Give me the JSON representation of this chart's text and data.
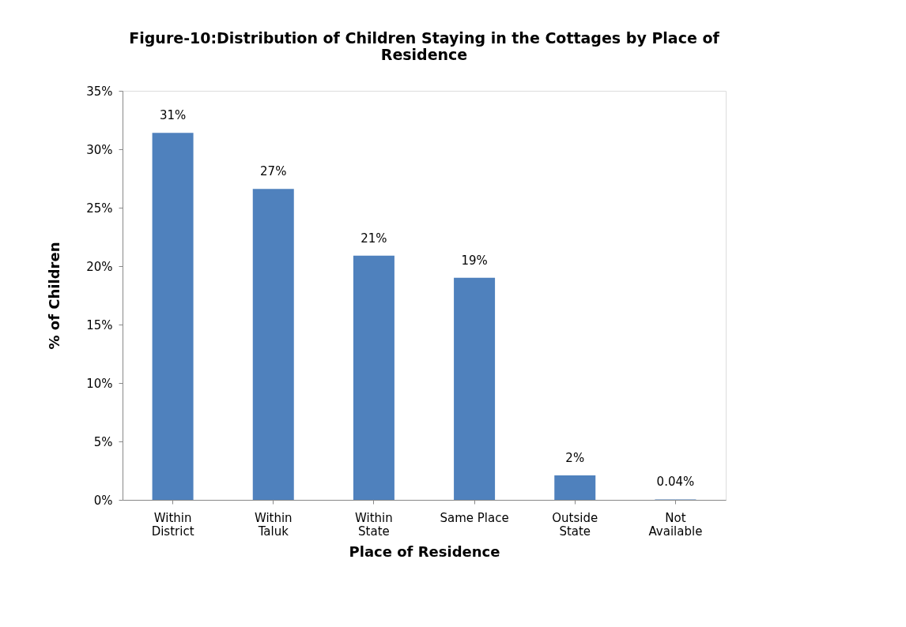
{
  "chart_data": {
    "type": "bar",
    "title": "Figure-10:Distribution of Children Staying in the Cottages by Place of Residence",
    "xlabel": "Place of Residence",
    "ylabel": "% of Children",
    "categories": [
      "Within\nDistrict",
      "Within\nTaluk",
      "Within\nState",
      "Same Place",
      "Outside\nState",
      "Not\nAvailable"
    ],
    "values": [
      31.4,
      26.6,
      20.9,
      19.0,
      2.1,
      0.04
    ],
    "value_labels": [
      "31%",
      "27%",
      "21%",
      "19%",
      "2%",
      "0.04%"
    ],
    "color": "#4f81bd",
    "ylim": [
      0,
      35
    ],
    "yticks": [
      {
        "value": 0,
        "label": "0%"
      },
      {
        "value": 5,
        "label": "5%"
      },
      {
        "value": 10,
        "label": "10%"
      },
      {
        "value": 15,
        "label": "15%"
      },
      {
        "value": 20,
        "label": "20%"
      },
      {
        "value": 25,
        "label": "25%"
      },
      {
        "value": 30,
        "label": "30%"
      },
      {
        "value": 35,
        "label": "35%"
      }
    ],
    "grid": false
  }
}
